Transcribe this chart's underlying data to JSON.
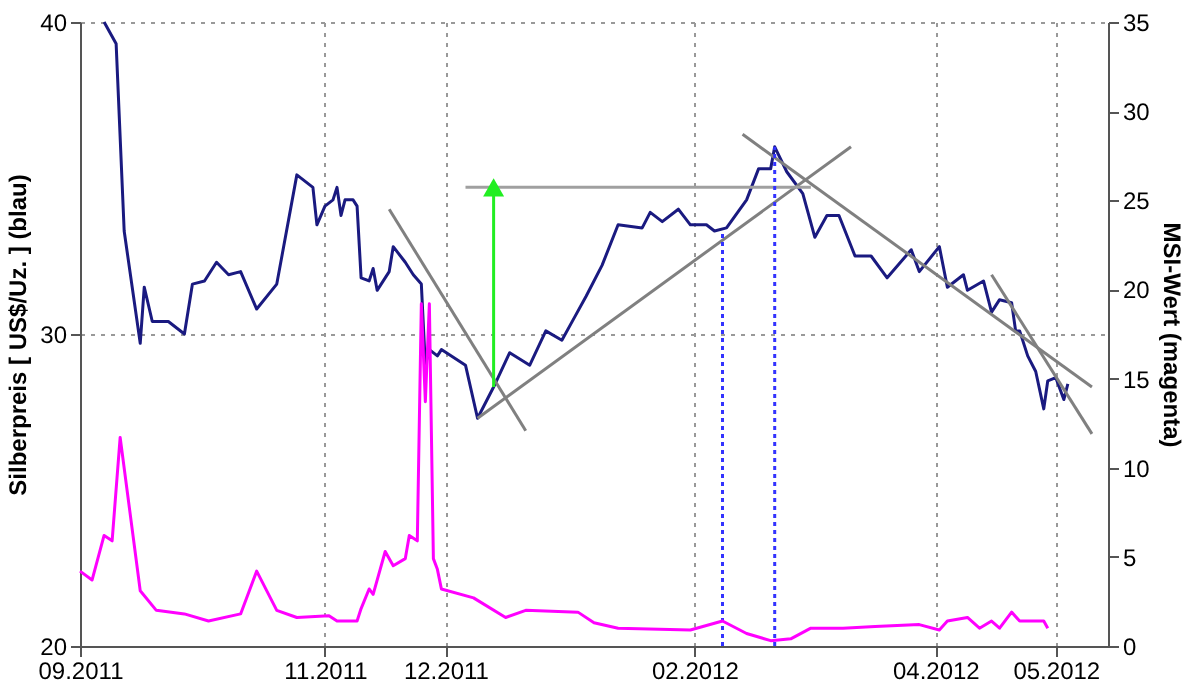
{
  "chart_data": {
    "type": "line",
    "ylabel": "Silberpreis [ US$/Uz. ] (blau)",
    "y2label": "MSI-Wert (magenta)",
    "xlim": [
      "2011-09-01",
      "2012-05-14"
    ],
    "xticks": [
      {
        "value": "2011-09",
        "label": "09.2011"
      },
      {
        "value": "2011-11",
        "label": "11.2011"
      },
      {
        "value": "2011-12",
        "label": "12.2011"
      },
      {
        "value": "2012-02",
        "label": "02.2012"
      },
      {
        "value": "2012-04",
        "label": "04.2012"
      },
      {
        "value": "2012-05",
        "label": "05.2012"
      }
    ],
    "ylim": [
      20,
      40
    ],
    "yticks": [
      20,
      30,
      40
    ],
    "y2lim": [
      0,
      35
    ],
    "y2ticks": [
      0,
      5,
      10,
      15,
      20,
      25,
      30,
      35
    ],
    "grid": true,
    "series": [
      {
        "color": "#ff00ff",
        "axis": "y2",
        "x": [
          "2011-09-01",
          "2011-09-04",
          "2011-09-07",
          "2011-09-09",
          "2011-09-11",
          "2011-09-16",
          "2011-09-20",
          "2011-09-27",
          "2011-10-03",
          "2011-10-11",
          "2011-10-15",
          "2011-10-20",
          "2011-10-25",
          "2011-11-02",
          "2011-11-04",
          "2011-11-09",
          "2011-11-10",
          "2011-11-12",
          "2011-11-13",
          "2011-11-16",
          "2011-11-18",
          "2011-11-21",
          "2011-11-22",
          "2011-11-24",
          "2011-11-25",
          "2011-11-26",
          "2011-11-27",
          "2011-11-28",
          "2011-11-29",
          "2011-11-30",
          "2011-12-08",
          "2011-12-16",
          "2011-12-21",
          "2012-01-03",
          "2012-01-07",
          "2012-01-13",
          "2012-01-31",
          "2012-02-08",
          "2012-02-14",
          "2012-02-20",
          "2012-02-25",
          "2012-03-01",
          "2012-03-09",
          "2012-03-17",
          "2012-03-28",
          "2012-04-02",
          "2012-04-04",
          "2012-04-09",
          "2012-04-12",
          "2012-04-15",
          "2012-04-17",
          "2012-04-20",
          "2012-04-22",
          "2012-04-28",
          "2012-04-29"
        ],
        "values": [
          4.2,
          3.7,
          6.2,
          5.9,
          11.7,
          3.1,
          2.0,
          1.8,
          1.4,
          1.8,
          4.2,
          2.0,
          1.6,
          1.7,
          1.4,
          1.4,
          2.1,
          3.2,
          2.9,
          5.3,
          4.5,
          4.9,
          6.2,
          5.9,
          19.2,
          13.7,
          19.2,
          4.9,
          4.3,
          3.2,
          2.7,
          1.6,
          2.0,
          1.9,
          1.3,
          1.0,
          0.9,
          1.4,
          0.7,
          0.3,
          0.4,
          1.0,
          1.0,
          1.1,
          1.2,
          0.9,
          1.4,
          1.6,
          1.0,
          1.4,
          1.0,
          1.9,
          1.4,
          1.4,
          1.0
        ]
      },
      {
        "color": "#1a1a80",
        "x": [
          "2011-09-07",
          "2011-09-10",
          "2011-09-12",
          "2011-09-16",
          "2011-09-17",
          "2011-09-19",
          "2011-09-23",
          "2011-09-27",
          "2011-09-29",
          "2011-10-02",
          "2011-10-05",
          "2011-10-08",
          "2011-10-11",
          "2011-10-15",
          "2011-10-20",
          "2011-10-25",
          "2011-10-29",
          "2011-10-30",
          "2011-11-01",
          "2011-11-03",
          "2011-11-04",
          "2011-11-05",
          "2011-11-06",
          "2011-11-08",
          "2011-11-09",
          "2011-11-10",
          "2011-11-12",
          "2011-11-13",
          "2011-11-14",
          "2011-11-17",
          "2011-11-18",
          "2011-11-21",
          "2011-11-23",
          "2011-11-25",
          "2011-11-26",
          "2011-11-27",
          "2011-11-29",
          "2011-11-30",
          "2011-12-06",
          "2011-12-09",
          "2011-12-13",
          "2011-12-17",
          "2011-12-22",
          "2011-12-26",
          "2011-12-30",
          "2012-01-02",
          "2012-01-05",
          "2012-01-09",
          "2012-01-13",
          "2012-01-19",
          "2012-01-21",
          "2012-01-24",
          "2012-01-28",
          "2012-01-31",
          "2012-02-04",
          "2012-02-06",
          "2012-02-09",
          "2012-02-14",
          "2012-02-17",
          "2012-02-20",
          "2012-02-21",
          "2012-02-24",
          "2012-02-28",
          "2012-03-02",
          "2012-03-05",
          "2012-03-08",
          "2012-03-12",
          "2012-03-16",
          "2012-03-20",
          "2012-03-26",
          "2012-03-28",
          "2012-04-02",
          "2012-04-04",
          "2012-04-06",
          "2012-04-08",
          "2012-04-09",
          "2012-04-13",
          "2012-04-15",
          "2012-04-17",
          "2012-04-20",
          "2012-04-21",
          "2012-04-22",
          "2012-04-24",
          "2012-04-26",
          "2012-04-28",
          "2012-04-29",
          "2012-05-01",
          "2012-05-03",
          "2012-05-04"
        ],
        "values": [
          40,
          39.3,
          33.3,
          29.7,
          31.5,
          30.4,
          30.4,
          30.0,
          31.6,
          31.7,
          32.3,
          31.9,
          32.0,
          30.8,
          31.6,
          35.1,
          34.7,
          33.5,
          34.1,
          34.3,
          34.7,
          33.8,
          34.3,
          34.3,
          34.1,
          31.8,
          31.7,
          32.1,
          31.4,
          32.0,
          32.8,
          32.3,
          31.9,
          31.6,
          29.0,
          29.5,
          29.3,
          29.5,
          29.0,
          27.3,
          28.3,
          29.4,
          29.0,
          30.1,
          29.8,
          30.5,
          31.2,
          32.2,
          33.5,
          33.4,
          33.9,
          33.6,
          34.0,
          33.5,
          33.5,
          33.3,
          33.4,
          34.3,
          35.3,
          35.3,
          36.0,
          35.2,
          34.5,
          33.1,
          33.8,
          33.8,
          32.5,
          32.5,
          31.8,
          32.7,
          32.0,
          32.8,
          31.5,
          31.7,
          31.9,
          31.4,
          31.7,
          30.7,
          31.1,
          31.0,
          30.1,
          30.1,
          29.3,
          28.8,
          27.6,
          28.5,
          28.6,
          27.9,
          28.4
        ]
      },
      {
        "color": "#808080",
        "x": [
          "2011-11-17",
          "2011-12-21"
        ],
        "values": [
          34.0,
          26.9
        ]
      },
      {
        "color": "#808080",
        "x": [
          "2011-12-09",
          "2012-03-11"
        ],
        "values": [
          27.3,
          36.0
        ]
      },
      {
        "color": "#808080",
        "x": [
          "2012-02-13",
          "2012-05-10"
        ],
        "values": [
          36.4,
          28.3
        ]
      },
      {
        "color": "#808080",
        "x": [
          "2012-04-15",
          "2012-05-10"
        ],
        "values": [
          31.9,
          26.8
        ]
      },
      {
        "color": "#a0a0a0",
        "x": [
          "2011-12-06",
          "2012-03-01"
        ],
        "values": [
          34.7,
          34.7
        ]
      },
      {
        "color": "#22ee22",
        "marker": "triangle",
        "x": [
          "2011-12-13",
          "2011-12-13"
        ],
        "values": [
          28.3,
          34.7
        ]
      },
      {
        "color": "#3333ff",
        "line_style": "dotted",
        "x": [
          "2012-02-08",
          "2012-02-08"
        ],
        "values": [
          20,
          33.3
        ]
      },
      {
        "color": "#3333ff",
        "line_style": "dotted",
        "x": [
          "2012-02-21",
          "2012-02-21"
        ],
        "values": [
          20,
          36.0
        ]
      }
    ]
  }
}
